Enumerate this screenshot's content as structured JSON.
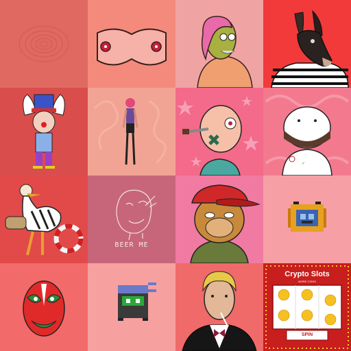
{
  "gallery": {
    "tiles": [
      {
        "name": "swirl-art",
        "bg": "#e06a62"
      },
      {
        "name": "torso-art",
        "bg": "#f48a7c"
      },
      {
        "name": "pink-hair-portrait",
        "bg": "#f0a3a3"
      },
      {
        "name": "donkey-striped-shirt",
        "bg": "#f23a3a"
      },
      {
        "name": "clown-character",
        "bg": "#d94d4d"
      },
      {
        "name": "standing-figure",
        "bg": "#f2a494"
      },
      {
        "name": "zombie-head",
        "bg": "#f36a8a"
      },
      {
        "name": "white-skull-figure",
        "bg": "#f37a8e"
      },
      {
        "name": "duck-zebra",
        "bg": "#e24a4a"
      },
      {
        "name": "beer-me-sketch",
        "bg": "#c7667a"
      },
      {
        "name": "ape-cap",
        "bg": "#f07aa2"
      },
      {
        "name": "pixel-bot",
        "bg": "#f6a0a6"
      },
      {
        "name": "opera-mask",
        "bg": "#f36a6a"
      },
      {
        "name": "pixel-ninja",
        "bg": "#f7a0a0"
      },
      {
        "name": "smoking-man",
        "bg": "#f06a6a"
      },
      {
        "name": "crypto-slots",
        "bg": "#c81e1e"
      }
    ]
  },
  "texts": {
    "beer_me": "BEER ME",
    "slots_title": "Crypto Slots",
    "slots_sub": "MORE COINS",
    "slots_spin": "SPIN"
  }
}
